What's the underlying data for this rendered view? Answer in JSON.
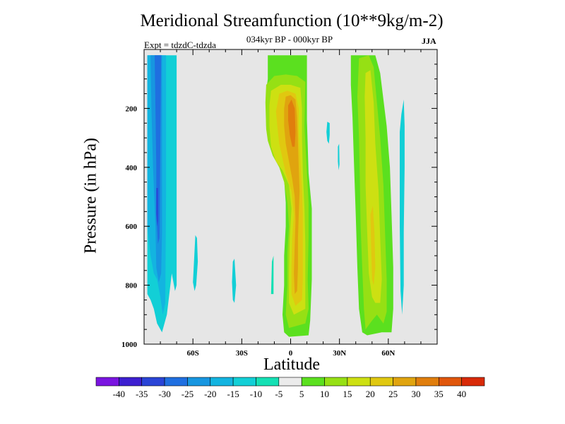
{
  "chart_data": {
    "type": "heatmap",
    "title": "Meridional Streamfunction (10**9kg/m-2)",
    "subtitle": "034kyr BP - 000kyr BP",
    "annotation_left": "Expt = tdzdC-tdzda",
    "annotation_right": "JJA",
    "xlabel": "Latitude",
    "ylabel": "Pressure (in hPa)",
    "xlim": [
      -90,
      90
    ],
    "ylim": [
      0,
      1000
    ],
    "x_ticks": [
      {
        "value": -60,
        "label": "60S"
      },
      {
        "value": -30,
        "label": "30S"
      },
      {
        "value": 0,
        "label": "0"
      },
      {
        "value": 30,
        "label": "30N"
      },
      {
        "value": 60,
        "label": "60N"
      }
    ],
    "y_ticks": [
      {
        "value": 200,
        "label": "200"
      },
      {
        "value": 400,
        "label": "400"
      },
      {
        "value": 600,
        "label": "600"
      },
      {
        "value": 800,
        "label": "800"
      },
      {
        "value": 1000,
        "label": "1000"
      }
    ],
    "colorbar": {
      "levels": [
        "-40",
        "-35",
        "-30",
        "-25",
        "-20",
        "-15",
        "-10",
        "-5",
        "5",
        "10",
        "15",
        "20",
        "25",
        "30",
        "35",
        "40"
      ],
      "colors": [
        "#7a14e0",
        "#3d1fd0",
        "#2a44d6",
        "#1f6fe0",
        "#1796e0",
        "#13b4e0",
        "#12cfd6",
        "#14e0b4",
        "#ebebeb",
        "#5be01f",
        "#96e014",
        "#cde012",
        "#e0c810",
        "#e0a40f",
        "#e07e0d",
        "#e0560b",
        "#d82a08"
      ]
    },
    "background_color": "#e6e6e6",
    "features": [
      {
        "name": "sh-polar-cell",
        "lat_range": [
          -88,
          -70
        ],
        "p_range": [
          20,
          950
        ],
        "min_value": -30,
        "description": "negative cell, extends to surface near 75S"
      },
      {
        "name": "sh-midlat-blob-a",
        "lat_range": [
          -60,
          -57
        ],
        "p_range": [
          650,
          820
        ],
        "value": -10
      },
      {
        "name": "sh-midlat-blob-b",
        "lat_range": [
          -36,
          -34
        ],
        "p_range": [
          740,
          880
        ],
        "value": -10
      },
      {
        "name": "tropical-cell",
        "lat_range": [
          -15,
          12
        ],
        "p_range": [
          20,
          970
        ],
        "max_value": 30,
        "description": "positive cell centered near equator, max ~30 near 200 hPa"
      },
      {
        "name": "nh-subtropic-blob-a",
        "lat_range": [
          22,
          24
        ],
        "p_range": [
          260,
          320
        ],
        "value": -10
      },
      {
        "name": "nh-subtropic-blob-b",
        "lat_range": [
          29,
          30
        ],
        "p_range": [
          330,
          400
        ],
        "value": -10
      },
      {
        "name": "nh-midlat-cell",
        "lat_range": [
          37,
          63
        ],
        "p_range": [
          20,
          970
        ],
        "max_value": 20,
        "description": "positive cell near 50N"
      },
      {
        "name": "nh-highlat-blob",
        "lat_range": [
          67,
          70
        ],
        "p_range": [
          170,
          900
        ],
        "value": -10
      }
    ]
  }
}
